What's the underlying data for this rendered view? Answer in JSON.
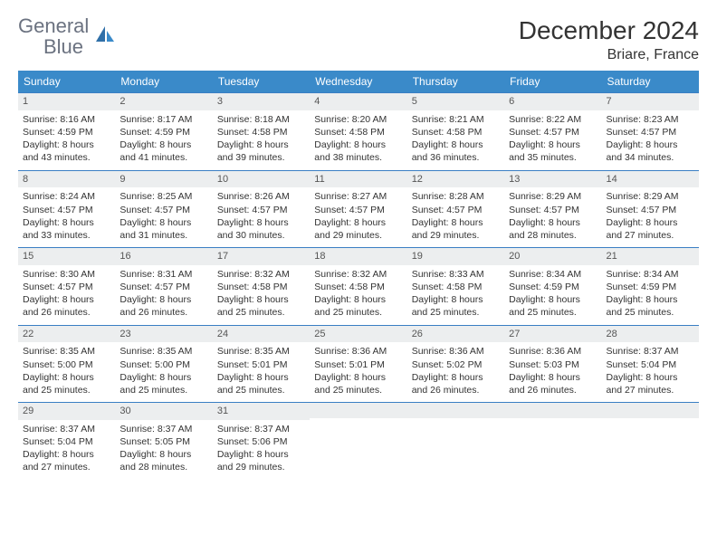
{
  "brand": {
    "part1": "General",
    "part2": "Blue"
  },
  "title": "December 2024",
  "location": "Briare, France",
  "colors": {
    "header_bg": "#3a8ac9",
    "header_text": "#ffffff",
    "border": "#3a7fc4",
    "daynum_bg": "#eceeef",
    "body_text": "#333333",
    "logo_gray": "#6b7280",
    "logo_blue": "#3a7fc4"
  },
  "weekdays": [
    "Sunday",
    "Monday",
    "Tuesday",
    "Wednesday",
    "Thursday",
    "Friday",
    "Saturday"
  ],
  "weeks": [
    [
      {
        "n": "1",
        "sr": "Sunrise: 8:16 AM",
        "ss": "Sunset: 4:59 PM",
        "d1": "Daylight: 8 hours",
        "d2": "and 43 minutes."
      },
      {
        "n": "2",
        "sr": "Sunrise: 8:17 AM",
        "ss": "Sunset: 4:59 PM",
        "d1": "Daylight: 8 hours",
        "d2": "and 41 minutes."
      },
      {
        "n": "3",
        "sr": "Sunrise: 8:18 AM",
        "ss": "Sunset: 4:58 PM",
        "d1": "Daylight: 8 hours",
        "d2": "and 39 minutes."
      },
      {
        "n": "4",
        "sr": "Sunrise: 8:20 AM",
        "ss": "Sunset: 4:58 PM",
        "d1": "Daylight: 8 hours",
        "d2": "and 38 minutes."
      },
      {
        "n": "5",
        "sr": "Sunrise: 8:21 AM",
        "ss": "Sunset: 4:58 PM",
        "d1": "Daylight: 8 hours",
        "d2": "and 36 minutes."
      },
      {
        "n": "6",
        "sr": "Sunrise: 8:22 AM",
        "ss": "Sunset: 4:57 PM",
        "d1": "Daylight: 8 hours",
        "d2": "and 35 minutes."
      },
      {
        "n": "7",
        "sr": "Sunrise: 8:23 AM",
        "ss": "Sunset: 4:57 PM",
        "d1": "Daylight: 8 hours",
        "d2": "and 34 minutes."
      }
    ],
    [
      {
        "n": "8",
        "sr": "Sunrise: 8:24 AM",
        "ss": "Sunset: 4:57 PM",
        "d1": "Daylight: 8 hours",
        "d2": "and 33 minutes."
      },
      {
        "n": "9",
        "sr": "Sunrise: 8:25 AM",
        "ss": "Sunset: 4:57 PM",
        "d1": "Daylight: 8 hours",
        "d2": "and 31 minutes."
      },
      {
        "n": "10",
        "sr": "Sunrise: 8:26 AM",
        "ss": "Sunset: 4:57 PM",
        "d1": "Daylight: 8 hours",
        "d2": "and 30 minutes."
      },
      {
        "n": "11",
        "sr": "Sunrise: 8:27 AM",
        "ss": "Sunset: 4:57 PM",
        "d1": "Daylight: 8 hours",
        "d2": "and 29 minutes."
      },
      {
        "n": "12",
        "sr": "Sunrise: 8:28 AM",
        "ss": "Sunset: 4:57 PM",
        "d1": "Daylight: 8 hours",
        "d2": "and 29 minutes."
      },
      {
        "n": "13",
        "sr": "Sunrise: 8:29 AM",
        "ss": "Sunset: 4:57 PM",
        "d1": "Daylight: 8 hours",
        "d2": "and 28 minutes."
      },
      {
        "n": "14",
        "sr": "Sunrise: 8:29 AM",
        "ss": "Sunset: 4:57 PM",
        "d1": "Daylight: 8 hours",
        "d2": "and 27 minutes."
      }
    ],
    [
      {
        "n": "15",
        "sr": "Sunrise: 8:30 AM",
        "ss": "Sunset: 4:57 PM",
        "d1": "Daylight: 8 hours",
        "d2": "and 26 minutes."
      },
      {
        "n": "16",
        "sr": "Sunrise: 8:31 AM",
        "ss": "Sunset: 4:57 PM",
        "d1": "Daylight: 8 hours",
        "d2": "and 26 minutes."
      },
      {
        "n": "17",
        "sr": "Sunrise: 8:32 AM",
        "ss": "Sunset: 4:58 PM",
        "d1": "Daylight: 8 hours",
        "d2": "and 25 minutes."
      },
      {
        "n": "18",
        "sr": "Sunrise: 8:32 AM",
        "ss": "Sunset: 4:58 PM",
        "d1": "Daylight: 8 hours",
        "d2": "and 25 minutes."
      },
      {
        "n": "19",
        "sr": "Sunrise: 8:33 AM",
        "ss": "Sunset: 4:58 PM",
        "d1": "Daylight: 8 hours",
        "d2": "and 25 minutes."
      },
      {
        "n": "20",
        "sr": "Sunrise: 8:34 AM",
        "ss": "Sunset: 4:59 PM",
        "d1": "Daylight: 8 hours",
        "d2": "and 25 minutes."
      },
      {
        "n": "21",
        "sr": "Sunrise: 8:34 AM",
        "ss": "Sunset: 4:59 PM",
        "d1": "Daylight: 8 hours",
        "d2": "and 25 minutes."
      }
    ],
    [
      {
        "n": "22",
        "sr": "Sunrise: 8:35 AM",
        "ss": "Sunset: 5:00 PM",
        "d1": "Daylight: 8 hours",
        "d2": "and 25 minutes."
      },
      {
        "n": "23",
        "sr": "Sunrise: 8:35 AM",
        "ss": "Sunset: 5:00 PM",
        "d1": "Daylight: 8 hours",
        "d2": "and 25 minutes."
      },
      {
        "n": "24",
        "sr": "Sunrise: 8:35 AM",
        "ss": "Sunset: 5:01 PM",
        "d1": "Daylight: 8 hours",
        "d2": "and 25 minutes."
      },
      {
        "n": "25",
        "sr": "Sunrise: 8:36 AM",
        "ss": "Sunset: 5:01 PM",
        "d1": "Daylight: 8 hours",
        "d2": "and 25 minutes."
      },
      {
        "n": "26",
        "sr": "Sunrise: 8:36 AM",
        "ss": "Sunset: 5:02 PM",
        "d1": "Daylight: 8 hours",
        "d2": "and 26 minutes."
      },
      {
        "n": "27",
        "sr": "Sunrise: 8:36 AM",
        "ss": "Sunset: 5:03 PM",
        "d1": "Daylight: 8 hours",
        "d2": "and 26 minutes."
      },
      {
        "n": "28",
        "sr": "Sunrise: 8:37 AM",
        "ss": "Sunset: 5:04 PM",
        "d1": "Daylight: 8 hours",
        "d2": "and 27 minutes."
      }
    ],
    [
      {
        "n": "29",
        "sr": "Sunrise: 8:37 AM",
        "ss": "Sunset: 5:04 PM",
        "d1": "Daylight: 8 hours",
        "d2": "and 27 minutes."
      },
      {
        "n": "30",
        "sr": "Sunrise: 8:37 AM",
        "ss": "Sunset: 5:05 PM",
        "d1": "Daylight: 8 hours",
        "d2": "and 28 minutes."
      },
      {
        "n": "31",
        "sr": "Sunrise: 8:37 AM",
        "ss": "Sunset: 5:06 PM",
        "d1": "Daylight: 8 hours",
        "d2": "and 29 minutes."
      },
      {
        "empty": true
      },
      {
        "empty": true
      },
      {
        "empty": true
      },
      {
        "empty": true
      }
    ]
  ]
}
